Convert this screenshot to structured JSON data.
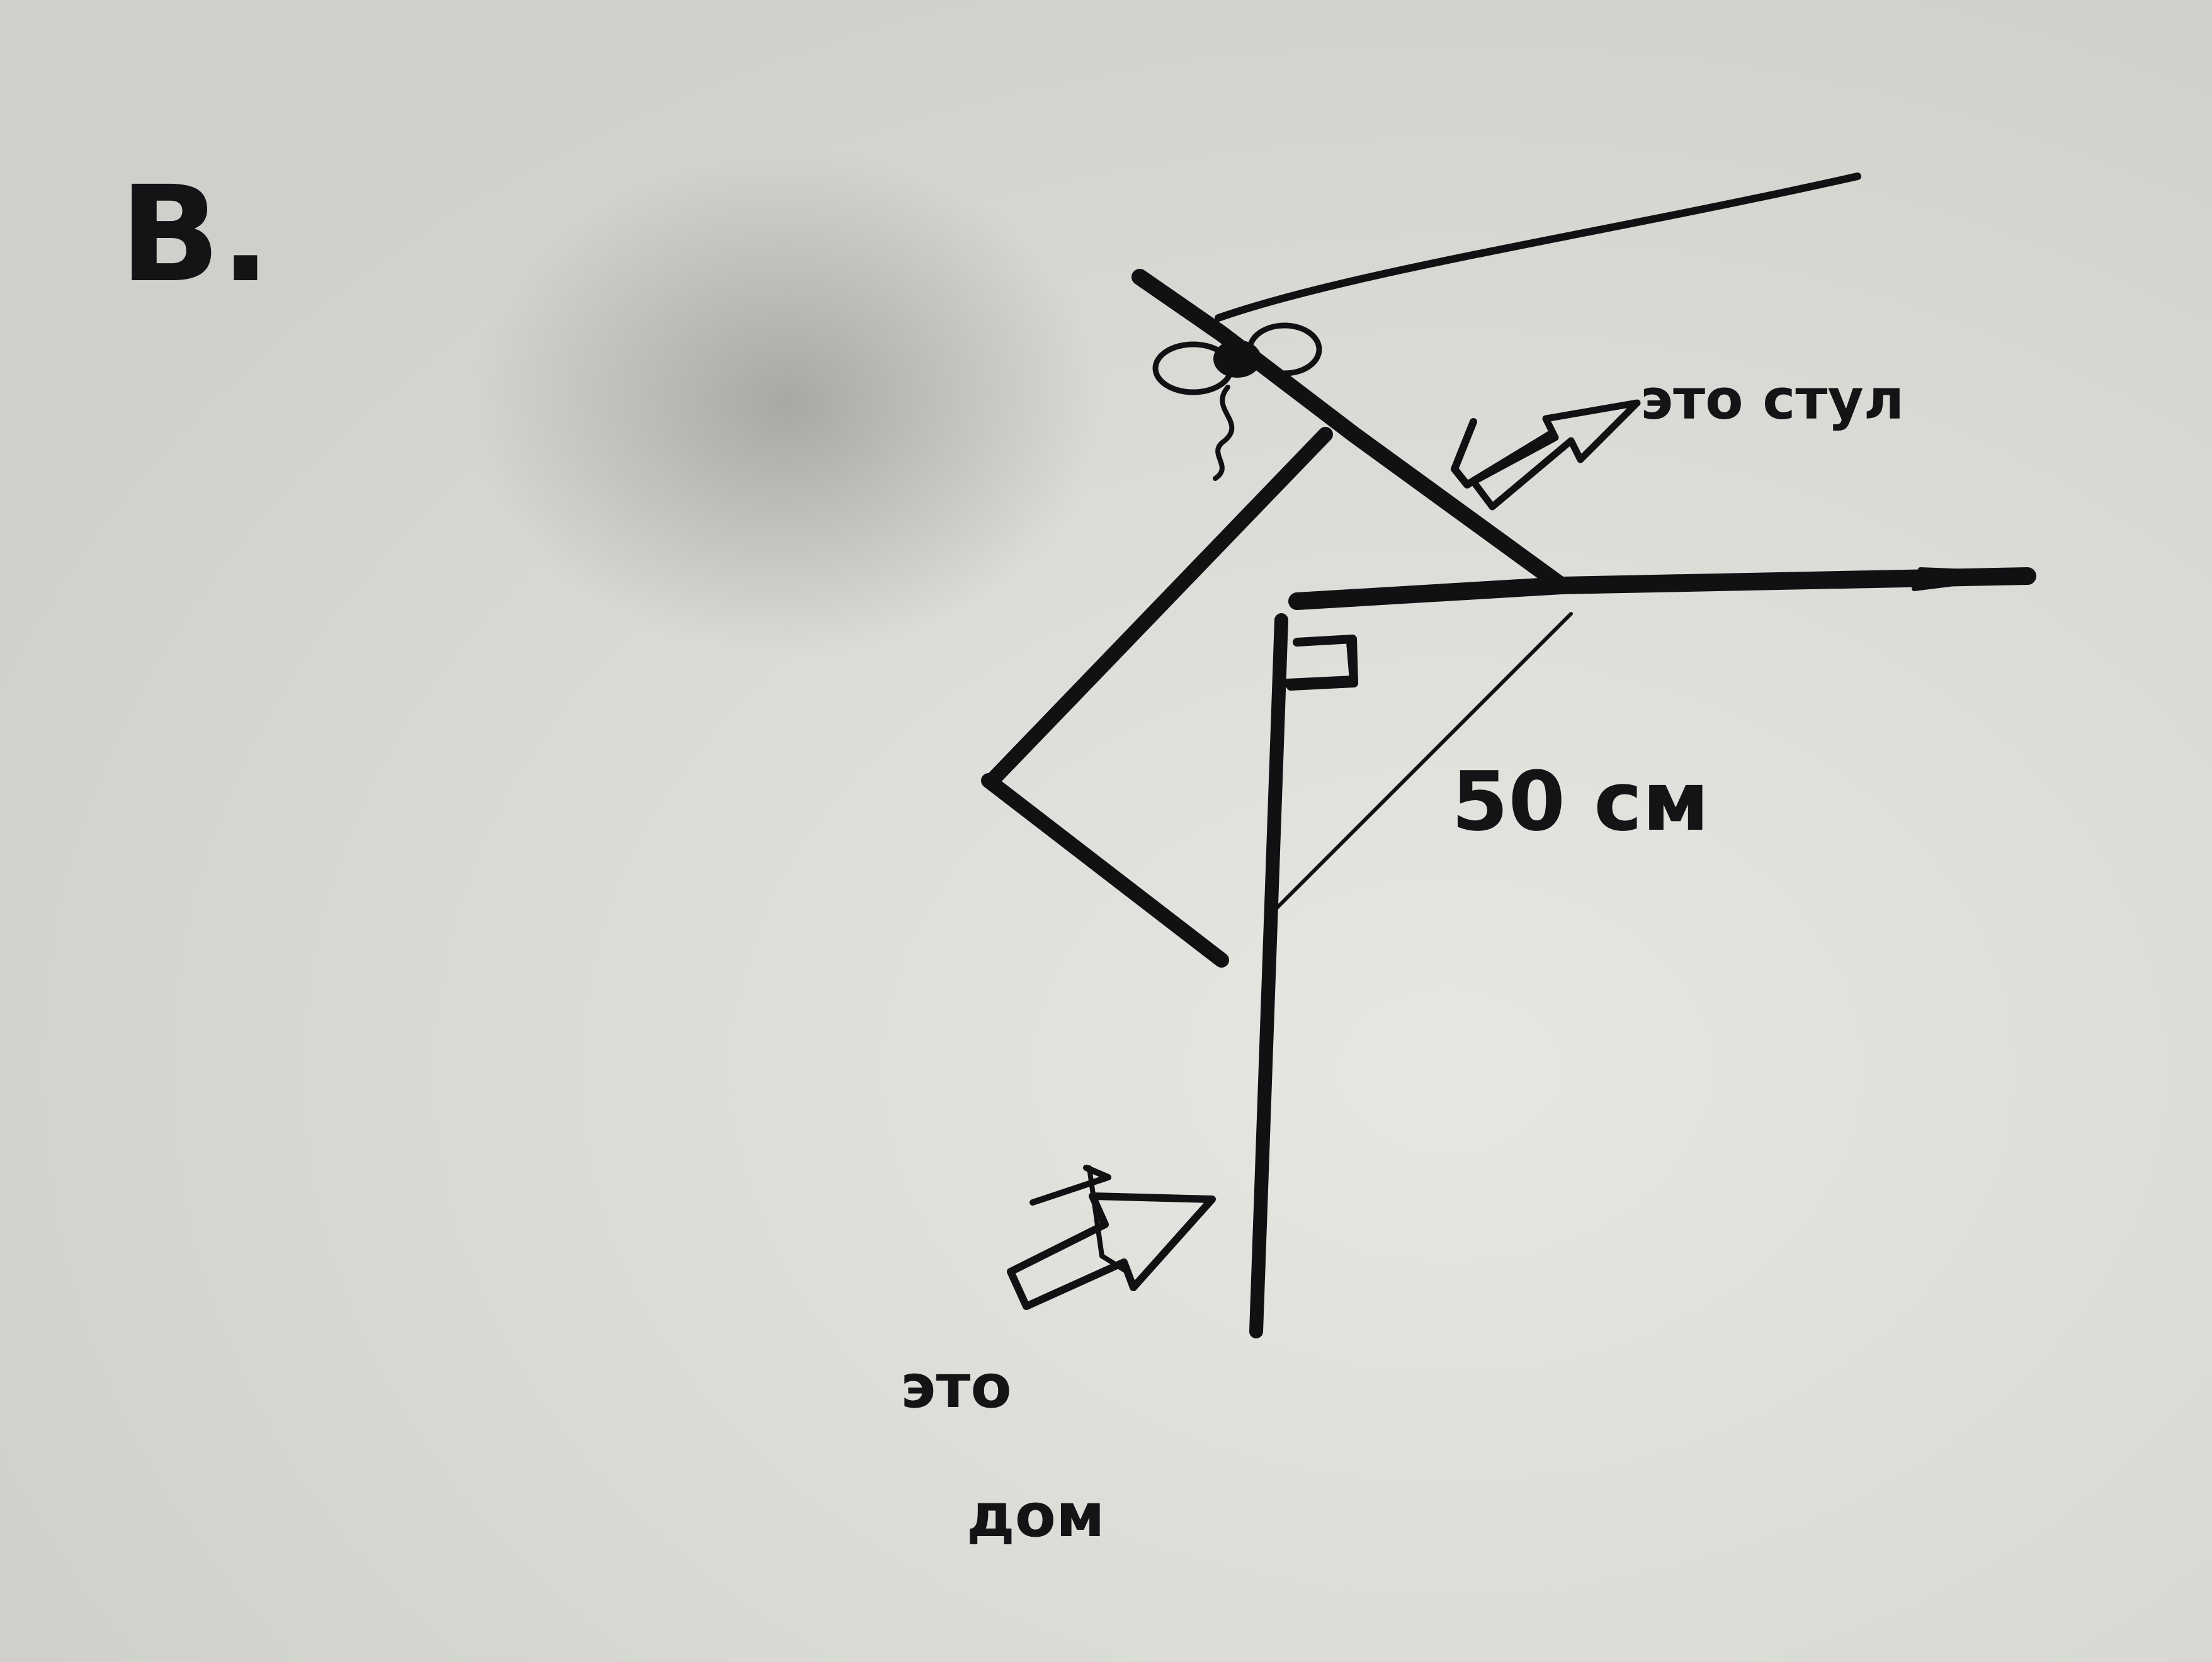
{
  "figure": {
    "letter": "B.",
    "chair_label": "это стул",
    "house_label_line1": "это",
    "house_label_line2": "дом",
    "dimension_label": "50 см"
  },
  "colors": {
    "paper": "#dcdcd7",
    "ink": "#111013"
  }
}
